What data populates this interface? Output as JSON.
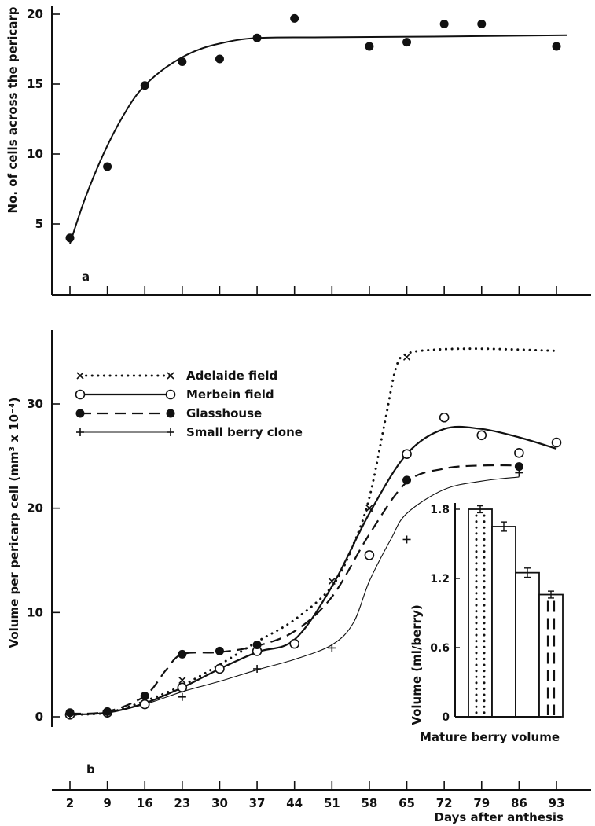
{
  "chart_data": [
    {
      "panel": "a",
      "type": "scatter",
      "ylabel": "No. of cells across the pericarp",
      "yticks": [
        5,
        10,
        15,
        20
      ],
      "x_range": [
        0,
        100
      ],
      "y_range": [
        0,
        21
      ],
      "points": [
        {
          "x": 2,
          "y": 4.0
        },
        {
          "x": 9,
          "y": 9.1
        },
        {
          "x": 16,
          "y": 14.9
        },
        {
          "x": 23,
          "y": 16.6
        },
        {
          "x": 30,
          "y": 16.8
        },
        {
          "x": 37,
          "y": 18.3
        },
        {
          "x": 44,
          "y": 19.7
        },
        {
          "x": 58,
          "y": 17.7
        },
        {
          "x": 65,
          "y": 18.0
        },
        {
          "x": 72,
          "y": 19.3
        },
        {
          "x": 79,
          "y": 19.3
        },
        {
          "x": 93,
          "y": 17.7
        }
      ],
      "fit_curve": [
        {
          "x": 2,
          "y": 3.6
        },
        {
          "x": 5,
          "y": 7.0
        },
        {
          "x": 9,
          "y": 10.6
        },
        {
          "x": 13,
          "y": 13.4
        },
        {
          "x": 16,
          "y": 14.9
        },
        {
          "x": 20,
          "y": 16.2
        },
        {
          "x": 25,
          "y": 17.3
        },
        {
          "x": 30,
          "y": 17.9
        },
        {
          "x": 37,
          "y": 18.3
        },
        {
          "x": 50,
          "y": 18.35
        },
        {
          "x": 70,
          "y": 18.4
        },
        {
          "x": 95,
          "y": 18.5
        }
      ]
    },
    {
      "panel": "b",
      "type": "line",
      "ylabel": "Volume per pericarp cell (mm³ x 10⁻⁴)",
      "xlabel": "Days after anthesis",
      "xticks": [
        2,
        9,
        16,
        23,
        30,
        37,
        44,
        51,
        58,
        65,
        72,
        79,
        86,
        93
      ],
      "yticks": [
        0,
        10,
        20,
        30
      ],
      "x_range": [
        0,
        100
      ],
      "y_range": [
        0,
        36
      ],
      "series": [
        {
          "name": "Adelaide field",
          "marker": "x",
          "line": "dotted",
          "points": [
            {
              "x": 2,
              "y": 0.3
            },
            {
              "x": 9,
              "y": 0.4
            },
            {
              "x": 23,
              "y": 3.5
            },
            {
              "x": 51,
              "y": 13.0
            },
            {
              "x": 58,
              "y": 20.0
            },
            {
              "x": 65,
              "y": 34.5
            }
          ],
          "curve": [
            {
              "x": 2,
              "y": 0.2
            },
            {
              "x": 9,
              "y": 0.4
            },
            {
              "x": 16,
              "y": 1.5
            },
            {
              "x": 23,
              "y": 3.0
            },
            {
              "x": 30,
              "y": 5.0
            },
            {
              "x": 37,
              "y": 7.2
            },
            {
              "x": 44,
              "y": 9.3
            },
            {
              "x": 51,
              "y": 12.5
            },
            {
              "x": 55,
              "y": 16.5
            },
            {
              "x": 58,
              "y": 21.0
            },
            {
              "x": 61,
              "y": 28.5
            },
            {
              "x": 63,
              "y": 33.5
            },
            {
              "x": 65,
              "y": 34.8
            },
            {
              "x": 70,
              "y": 35.2
            },
            {
              "x": 79,
              "y": 35.3
            },
            {
              "x": 93,
              "y": 35.1
            }
          ]
        },
        {
          "name": "Merbein field",
          "marker": "open-circle",
          "line": "solid",
          "points": [
            {
              "x": 2,
              "y": 0.2
            },
            {
              "x": 9,
              "y": 0.4
            },
            {
              "x": 16,
              "y": 1.2
            },
            {
              "x": 23,
              "y": 2.8
            },
            {
              "x": 30,
              "y": 4.6
            },
            {
              "x": 37,
              "y": 6.3
            },
            {
              "x": 44,
              "y": 7.0
            },
            {
              "x": 58,
              "y": 15.5
            },
            {
              "x": 65,
              "y": 25.2
            },
            {
              "x": 72,
              "y": 28.7
            },
            {
              "x": 79,
              "y": 27.0
            },
            {
              "x": 86,
              "y": 25.3
            },
            {
              "x": 93,
              "y": 26.3
            }
          ],
          "curve": [
            {
              "x": 2,
              "y": 0.2
            },
            {
              "x": 9,
              "y": 0.4
            },
            {
              "x": 16,
              "y": 1.3
            },
            {
              "x": 23,
              "y": 2.8
            },
            {
              "x": 30,
              "y": 4.6
            },
            {
              "x": 37,
              "y": 6.2
            },
            {
              "x": 44,
              "y": 7.4
            },
            {
              "x": 51,
              "y": 12.5
            },
            {
              "x": 58,
              "y": 19.5
            },
            {
              "x": 65,
              "y": 25.2
            },
            {
              "x": 72,
              "y": 27.6
            },
            {
              "x": 79,
              "y": 27.6
            },
            {
              "x": 86,
              "y": 26.8
            },
            {
              "x": 93,
              "y": 25.7
            }
          ]
        },
        {
          "name": "Glasshouse",
          "marker": "filled-circle",
          "line": "dashed",
          "points": [
            {
              "x": 2,
              "y": 0.4
            },
            {
              "x": 9,
              "y": 0.5
            },
            {
              "x": 16,
              "y": 2.0
            },
            {
              "x": 23,
              "y": 6.0
            },
            {
              "x": 30,
              "y": 6.3
            },
            {
              "x": 37,
              "y": 6.9
            },
            {
              "x": 65,
              "y": 22.7
            },
            {
              "x": 86,
              "y": 24.0
            }
          ],
          "curve": [
            {
              "x": 2,
              "y": 0.3
            },
            {
              "x": 9,
              "y": 0.5
            },
            {
              "x": 16,
              "y": 2.0
            },
            {
              "x": 20,
              "y": 4.5
            },
            {
              "x": 23,
              "y": 6.0
            },
            {
              "x": 30,
              "y": 6.2
            },
            {
              "x": 37,
              "y": 6.8
            },
            {
              "x": 44,
              "y": 8.2
            },
            {
              "x": 51,
              "y": 11.5
            },
            {
              "x": 58,
              "y": 17.5
            },
            {
              "x": 65,
              "y": 22.5
            },
            {
              "x": 72,
              "y": 23.8
            },
            {
              "x": 79,
              "y": 24.1
            },
            {
              "x": 86,
              "y": 24.1
            }
          ]
        },
        {
          "name": "Small berry clone",
          "marker": "plus",
          "line": "solid-thin",
          "points": [
            {
              "x": 2,
              "y": 0.2
            },
            {
              "x": 9,
              "y": 0.3
            },
            {
              "x": 23,
              "y": 1.9
            },
            {
              "x": 37,
              "y": 4.6
            },
            {
              "x": 51,
              "y": 6.6
            },
            {
              "x": 65,
              "y": 17.0
            },
            {
              "x": 86,
              "y": 23.4
            }
          ],
          "curve": [
            {
              "x": 2,
              "y": 0.2
            },
            {
              "x": 9,
              "y": 0.4
            },
            {
              "x": 16,
              "y": 1.2
            },
            {
              "x": 23,
              "y": 2.4
            },
            {
              "x": 30,
              "y": 3.4
            },
            {
              "x": 37,
              "y": 4.5
            },
            {
              "x": 44,
              "y": 5.5
            },
            {
              "x": 51,
              "y": 6.9
            },
            {
              "x": 55,
              "y": 9.0
            },
            {
              "x": 58,
              "y": 13.0
            },
            {
              "x": 62,
              "y": 17.0
            },
            {
              "x": 65,
              "y": 19.5
            },
            {
              "x": 72,
              "y": 21.8
            },
            {
              "x": 79,
              "y": 22.6
            },
            {
              "x": 86,
              "y": 23.0
            }
          ]
        }
      ]
    },
    {
      "panel": "inset",
      "type": "bar",
      "xlabel": "Mature berry volume",
      "ylabel": "Volume (ml/berry)",
      "yticks": [
        0,
        0.6,
        1.2,
        1.8
      ],
      "ylim": [
        0,
        1.9
      ],
      "bars": [
        {
          "series": "Adelaide field",
          "value": 1.8,
          "err": 0.03,
          "fill": "dotted"
        },
        {
          "series": "Merbein field",
          "value": 1.65,
          "err": 0.04,
          "fill": "solid-line"
        },
        {
          "series": "Small berry clone",
          "value": 1.25,
          "err": 0.04,
          "fill": "thin-line"
        },
        {
          "series": "Glasshouse",
          "value": 1.06,
          "err": 0.03,
          "fill": "dashed"
        }
      ]
    }
  ]
}
